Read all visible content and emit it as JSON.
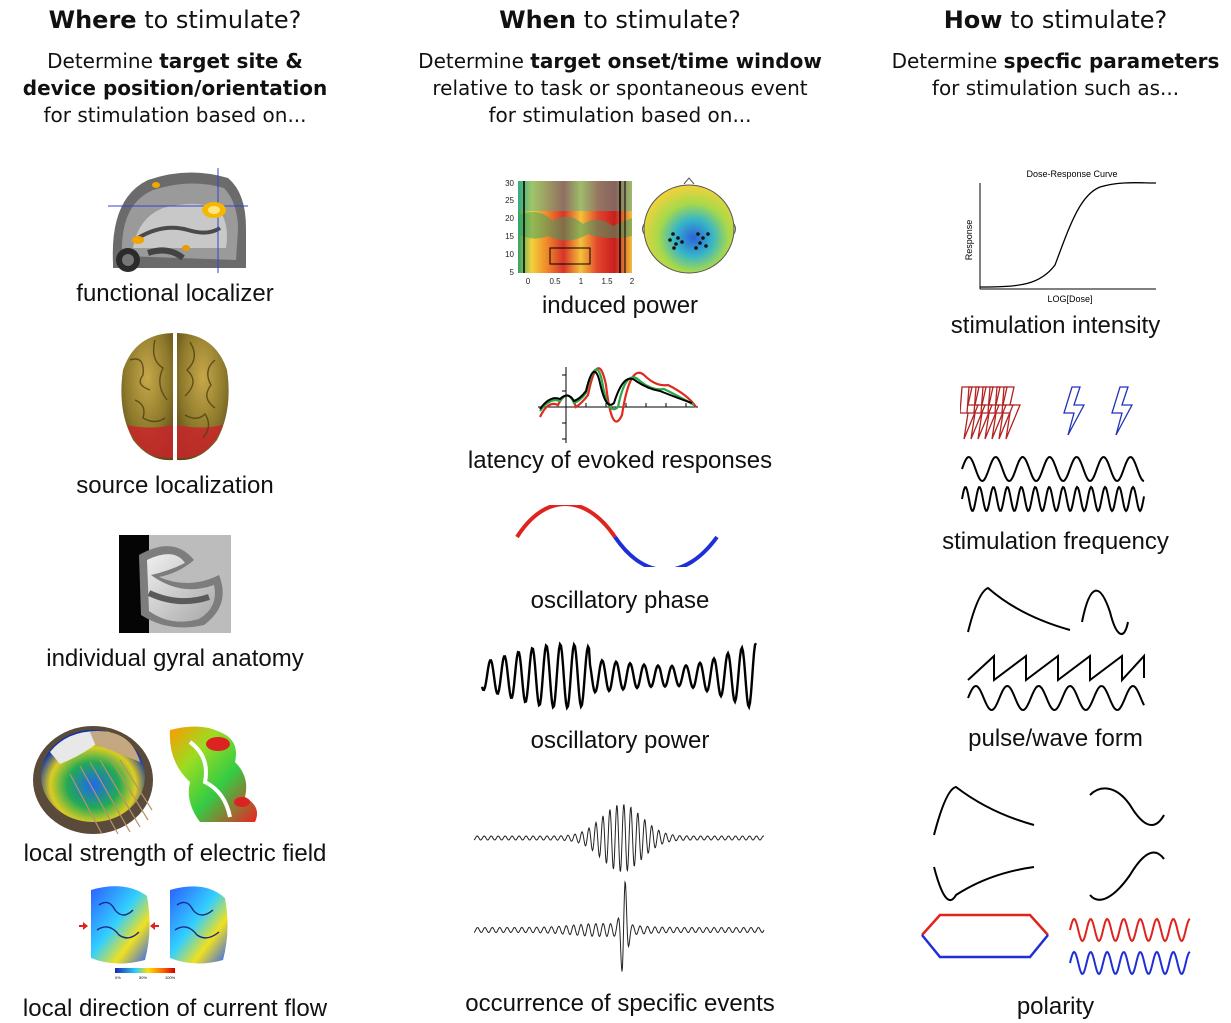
{
  "where": {
    "title_bold": "Where",
    "title_rest": " to stimulate?",
    "desc_pre": "Determine ",
    "desc_bold1": "target site &",
    "desc_bold2": "device position/orientation",
    "desc_post": "for stimulation based on...",
    "items": [
      {
        "label": "functional localizer",
        "icon": "sagittal-mri-icon"
      },
      {
        "label": "source localization",
        "icon": "brain-surface-icon"
      },
      {
        "label": "individual gyral anatomy",
        "icon": "gyrus-mri-icon"
      },
      {
        "label": "local strength of electric field",
        "icon": "e-field-head-model-icon"
      },
      {
        "label": "local direction of current flow",
        "icon": "current-flow-map-icon"
      }
    ]
  },
  "when": {
    "title_bold": "When",
    "title_rest": " to stimulate?",
    "desc_pre": "Determine ",
    "desc_bold": "target onset/time window",
    "desc_line2": "relative to task or spontaneous event",
    "desc_line3": "for stimulation based on...",
    "items": [
      {
        "label": "induced power",
        "icon": "time-frequency-map-icon"
      },
      {
        "label": "latency of evoked responses",
        "icon": "evoked-response-icon"
      },
      {
        "label": "oscillatory phase",
        "icon": "phase-wave-icon"
      },
      {
        "label": "oscillatory power",
        "icon": "power-wave-icon"
      },
      {
        "label": "occurrence of specific events",
        "icon": "event-trace-icon"
      }
    ],
    "tf_yticks": [
      "30",
      "25",
      "20",
      "15",
      "10",
      "5"
    ],
    "tf_xticks": [
      "0",
      "0.5",
      "1",
      "1.5",
      "2"
    ]
  },
  "how": {
    "title_bold": "How",
    "title_rest": " to stimulate?",
    "desc_pre": "Determine ",
    "desc_bold": "specfic parameters",
    "desc_post": "for stimulation such as...",
    "items": [
      {
        "label": "stimulation intensity",
        "icon": "dose-response-icon"
      },
      {
        "label": "stimulation frequency",
        "icon": "frequency-icon"
      },
      {
        "label": "pulse/wave form",
        "icon": "waveform-icon"
      },
      {
        "label": "polarity",
        "icon": "polarity-icon"
      }
    ],
    "dose_title": "Dose-Response Curve",
    "dose_xlabel": "LOG[Dose]",
    "dose_ylabel": "Response"
  },
  "colors": {
    "red": "#e0231c",
    "blue": "#1e2fd6",
    "darkred": "#b22222",
    "navy": "#2233bb"
  }
}
